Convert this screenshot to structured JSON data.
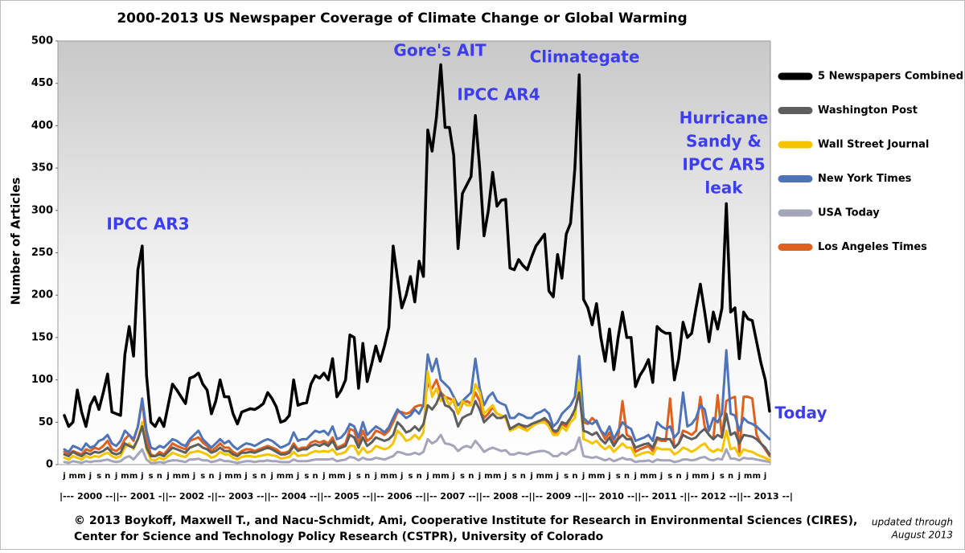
{
  "chart_data": {
    "type": "line",
    "title": "2000-2013 US Newspaper Coverage of Climate Change or Global Warming",
    "y_label": "Number of Articles",
    "ylim": [
      0,
      500
    ],
    "yticks": [
      0,
      50,
      100,
      150,
      200,
      250,
      300,
      350,
      400,
      450,
      500
    ],
    "grid": false,
    "legend": "right",
    "year_strip": "|--- 2000 --||-- 2001 -||-- 2002 -||-- 2003 --||-- 2004 --||-- 2005 --||-- 2006 --||-- 2007 --||-- 2008 --||-- 2009 --||-- 2010 --||-- 2011 -||-- 2012 --||-- 2013 --|",
    "annotations": [
      "IPCC AR3",
      "Gore's AIT",
      "IPCC AR4",
      "Climategate",
      [
        "Hurricane",
        "Sandy &",
        "IPCC AR5",
        "leak"
      ],
      "Today"
    ],
    "footer": [
      "© 2013 Boykoff, Maxwell T., and Nacu-Schmidt, Ami, Cooperative Institute for Research in Environmental Sciences (CIRES),",
      "Center for Science and Technology Policy Research (CSTPR), University of Colorado"
    ],
    "note": [
      "updated through",
      "August 2013"
    ],
    "categories": [
      "j",
      null,
      "m",
      null,
      "m",
      null,
      "j",
      null,
      "s",
      null,
      "n",
      null,
      "j",
      null,
      "m",
      null,
      "m",
      null,
      "j",
      null,
      "s",
      null,
      "n",
      null,
      "j",
      null,
      "m",
      null,
      "m",
      null,
      "j",
      null,
      "s",
      null,
      "n",
      null,
      "j",
      null,
      "m",
      null,
      "m",
      null,
      "j",
      null,
      "s",
      null,
      "n",
      null,
      "j",
      null,
      "m",
      null,
      "m",
      null,
      "j",
      null,
      "s",
      null,
      "n",
      null,
      "j",
      null,
      "m",
      null,
      "m",
      null,
      "j",
      null,
      "s",
      null,
      "n",
      null,
      "j",
      null,
      "m",
      null,
      "m",
      null,
      "j",
      null,
      "s",
      null,
      "n",
      null,
      "j",
      null,
      "m",
      null,
      "m",
      null,
      "j",
      null,
      "s",
      null,
      "n",
      null,
      "j",
      null,
      "m",
      null,
      "m",
      null,
      "j",
      null,
      "s",
      null,
      "n",
      null,
      "j",
      null,
      "m",
      null,
      "m",
      null,
      "j",
      null,
      "s",
      null,
      "n",
      null,
      "j",
      null,
      "m",
      null,
      "m",
      null,
      "j",
      null,
      "s",
      null,
      "n",
      null,
      "j",
      null,
      "m",
      null,
      "m",
      null,
      "j",
      null,
      "s",
      null,
      "n",
      null,
      "j",
      null,
      "m",
      null,
      "m",
      null,
      "j",
      null,
      "s",
      null,
      "n",
      null,
      "j",
      null,
      "m",
      null,
      "m",
      null,
      "j",
      null
    ],
    "series": [
      {
        "name": "5 Newspapers Combined",
        "color": "#000000",
        "values": [
          58,
          45,
          50,
          88,
          62,
          45,
          70,
          80,
          65,
          85,
          107,
          62,
          60,
          58,
          130,
          163,
          128,
          230,
          258,
          105,
          50,
          45,
          55,
          45,
          70,
          95,
          88,
          80,
          72,
          102,
          104,
          108,
          95,
          88,
          60,
          75,
          100,
          80,
          80,
          60,
          48,
          62,
          64,
          66,
          65,
          68,
          72,
          85,
          78,
          68,
          50,
          52,
          58,
          100,
          70,
          72,
          73,
          95,
          105,
          102,
          108,
          100,
          125,
          80,
          88,
          100,
          153,
          150,
          90,
          143,
          98,
          118,
          140,
          122,
          140,
          162,
          258,
          220,
          185,
          200,
          222,
          192,
          240,
          222,
          395,
          370,
          410,
          472,
          398,
          398,
          365,
          255,
          320,
          330,
          340,
          412,
          350,
          270,
          300,
          345,
          305,
          312,
          313,
          232,
          230,
          242,
          235,
          230,
          245,
          258,
          265,
          272,
          205,
          198,
          248,
          220,
          272,
          285,
          350,
          460,
          195,
          185,
          165,
          190,
          150,
          122,
          160,
          112,
          150,
          180,
          150,
          150,
          92,
          105,
          113,
          124,
          97,
          163,
          158,
          155,
          155,
          100,
          125,
          168,
          150,
          155,
          185,
          213,
          180,
          145,
          180,
          160,
          185,
          308,
          180,
          185,
          125,
          180,
          172,
          170,
          145,
          120,
          100,
          63
        ]
      },
      {
        "name": "Washington Post",
        "color": "#5e5e5e",
        "values": [
          12,
          10,
          15,
          12,
          10,
          14,
          12,
          15,
          14,
          16,
          20,
          14,
          12,
          14,
          25,
          22,
          20,
          30,
          45,
          20,
          10,
          10,
          12,
          10,
          15,
          20,
          18,
          16,
          14,
          20,
          22,
          24,
          20,
          18,
          14,
          16,
          20,
          16,
          16,
          12,
          10,
          14,
          14,
          15,
          14,
          16,
          18,
          20,
          18,
          15,
          12,
          12,
          14,
          22,
          16,
          18,
          18,
          22,
          24,
          22,
          25,
          22,
          28,
          18,
          20,
          22,
          35,
          32,
          20,
          32,
          22,
          26,
          32,
          30,
          28,
          30,
          35,
          50,
          45,
          38,
          40,
          45,
          40,
          48,
          70,
          65,
          72,
          85,
          70,
          68,
          62,
          45,
          55,
          58,
          60,
          75,
          65,
          50,
          55,
          60,
          55,
          55,
          58,
          42,
          45,
          48,
          46,
          45,
          48,
          50,
          52,
          55,
          50,
          40,
          40,
          50,
          48,
          55,
          65,
          85,
          40,
          38,
          35,
          38,
          30,
          25,
          32,
          22,
          30,
          35,
          30,
          30,
          20,
          22,
          24,
          25,
          20,
          32,
          30,
          30,
          30,
          20,
          25,
          35,
          32,
          30,
          32,
          38,
          42,
          35,
          30,
          35,
          32,
          60,
          35,
          38,
          25,
          35,
          34,
          33,
          30,
          25,
          20,
          12
        ]
      },
      {
        "name": "Wall Street Journal",
        "color": "#f5c400",
        "values": [
          8,
          6,
          10,
          8,
          6,
          10,
          8,
          10,
          9,
          12,
          14,
          10,
          8,
          10,
          20,
          25,
          18,
          30,
          50,
          18,
          6,
          5,
          8,
          6,
          10,
          14,
          12,
          10,
          9,
          14,
          15,
          16,
          14,
          12,
          8,
          10,
          15,
          12,
          12,
          8,
          6,
          9,
          10,
          10,
          9,
          10,
          11,
          12,
          11,
          10,
          7,
          8,
          9,
          15,
          10,
          11,
          11,
          14,
          16,
          15,
          16,
          15,
          18,
          12,
          13,
          15,
          22,
          22,
          12,
          20,
          14,
          16,
          22,
          20,
          18,
          20,
          25,
          40,
          35,
          28,
          30,
          35,
          30,
          38,
          110,
          80,
          90,
          75,
          80,
          70,
          78,
          60,
          75,
          70,
          70,
          95,
          85,
          60,
          65,
          70,
          60,
          58,
          55,
          40,
          42,
          45,
          42,
          40,
          45,
          48,
          50,
          50,
          45,
          35,
          35,
          45,
          40,
          50,
          55,
          100,
          30,
          28,
          25,
          28,
          22,
          18,
          22,
          15,
          20,
          25,
          20,
          20,
          10,
          12,
          14,
          15,
          12,
          20,
          18,
          18,
          18,
          12,
          15,
          20,
          18,
          15,
          18,
          22,
          25,
          18,
          15,
          18,
          16,
          40,
          18,
          20,
          10,
          18,
          16,
          15,
          12,
          10,
          8,
          5
        ]
      },
      {
        "name": "New York Times",
        "color": "#4f73b8",
        "values": [
          18,
          15,
          22,
          20,
          17,
          25,
          20,
          22,
          28,
          30,
          35,
          25,
          22,
          28,
          40,
          35,
          30,
          45,
          78,
          40,
          20,
          18,
          22,
          20,
          25,
          30,
          28,
          24,
          22,
          30,
          35,
          40,
          30,
          25,
          20,
          25,
          30,
          25,
          28,
          22,
          18,
          22,
          25,
          24,
          22,
          25,
          28,
          30,
          28,
          24,
          20,
          22,
          25,
          38,
          28,
          30,
          30,
          35,
          40,
          38,
          40,
          35,
          45,
          30,
          32,
          38,
          48,
          45,
          32,
          50,
          35,
          40,
          45,
          42,
          38,
          44,
          55,
          65,
          60,
          55,
          58,
          65,
          60,
          70,
          130,
          110,
          125,
          100,
          95,
          90,
          80,
          70,
          75,
          80,
          85,
          125,
          90,
          70,
          80,
          85,
          75,
          72,
          70,
          55,
          55,
          60,
          58,
          55,
          55,
          60,
          62,
          65,
          60,
          45,
          50,
          60,
          65,
          70,
          80,
          128,
          55,
          50,
          48,
          52,
          40,
          35,
          45,
          30,
          40,
          50,
          45,
          42,
          28,
          30,
          32,
          35,
          28,
          50,
          45,
          42,
          45,
          32,
          38,
          85,
          45,
          48,
          55,
          70,
          65,
          40,
          55,
          50,
          60,
          135,
          60,
          58,
          40,
          55,
          50,
          48,
          45,
          40,
          35,
          30
        ]
      },
      {
        "name": "USA Today",
        "color": "#a4a4ba",
        "values": [
          3,
          2,
          4,
          3,
          2,
          4,
          3,
          4,
          4,
          5,
          6,
          4,
          3,
          4,
          8,
          10,
          6,
          12,
          18,
          6,
          2,
          2,
          3,
          2,
          4,
          5,
          5,
          4,
          3,
          6,
          6,
          7,
          5,
          5,
          3,
          4,
          6,
          4,
          4,
          3,
          2,
          3,
          4,
          4,
          3,
          4,
          4,
          5,
          4,
          4,
          3,
          3,
          3,
          6,
          4,
          4,
          4,
          5,
          6,
          6,
          6,
          6,
          7,
          4,
          5,
          6,
          9,
          8,
          5,
          8,
          6,
          6,
          8,
          7,
          6,
          8,
          10,
          15,
          14,
          12,
          12,
          14,
          12,
          15,
          30,
          25,
          28,
          35,
          25,
          24,
          22,
          16,
          20,
          22,
          20,
          28,
          22,
          15,
          18,
          20,
          18,
          16,
          17,
          12,
          12,
          14,
          13,
          12,
          14,
          15,
          16,
          16,
          14,
          10,
          10,
          14,
          12,
          16,
          18,
          32,
          10,
          9,
          8,
          9,
          7,
          5,
          7,
          4,
          6,
          8,
          6,
          6,
          3,
          4,
          4,
          5,
          3,
          6,
          5,
          5,
          5,
          3,
          4,
          6,
          6,
          5,
          6,
          8,
          9,
          6,
          5,
          7,
          6,
          18,
          7,
          7,
          5,
          8,
          7,
          7,
          6,
          5,
          4,
          3
        ]
      },
      {
        "name": "Los Angeles Times",
        "color": "#e0601e",
        "values": [
          15,
          12,
          16,
          14,
          12,
          18,
          16,
          20,
          18,
          22,
          28,
          18,
          16,
          20,
          30,
          35,
          28,
          45,
          75,
          30,
          12,
          10,
          15,
          12,
          18,
          25,
          22,
          20,
          18,
          28,
          30,
          32,
          26,
          22,
          16,
          20,
          25,
          20,
          20,
          15,
          12,
          16,
          18,
          18,
          16,
          18,
          20,
          22,
          20,
          18,
          14,
          14,
          16,
          25,
          18,
          20,
          20,
          26,
          28,
          26,
          28,
          25,
          32,
          20,
          22,
          25,
          42,
          40,
          25,
          40,
          28,
          32,
          40,
          38,
          35,
          40,
          50,
          62,
          62,
          60,
          62,
          68,
          70,
          70,
          95,
          90,
          100,
          85,
          80,
          78,
          75,
          60,
          72,
          75,
          72,
          85,
          75,
          55,
          60,
          68,
          60,
          58,
          55,
          42,
          45,
          48,
          45,
          40,
          45,
          48,
          50,
          52,
          48,
          38,
          38,
          48,
          45,
          55,
          62,
          88,
          50,
          48,
          55,
          50,
          40,
          30,
          38,
          25,
          32,
          75,
          35,
          32,
          15,
          18,
          20,
          22,
          16,
          30,
          28,
          28,
          78,
          20,
          25,
          40,
          38,
          35,
          40,
          80,
          45,
          35,
          30,
          82,
          32,
          75,
          78,
          80,
          15,
          80,
          80,
          78,
          35,
          25,
          18,
          10
        ]
      }
    ]
  }
}
